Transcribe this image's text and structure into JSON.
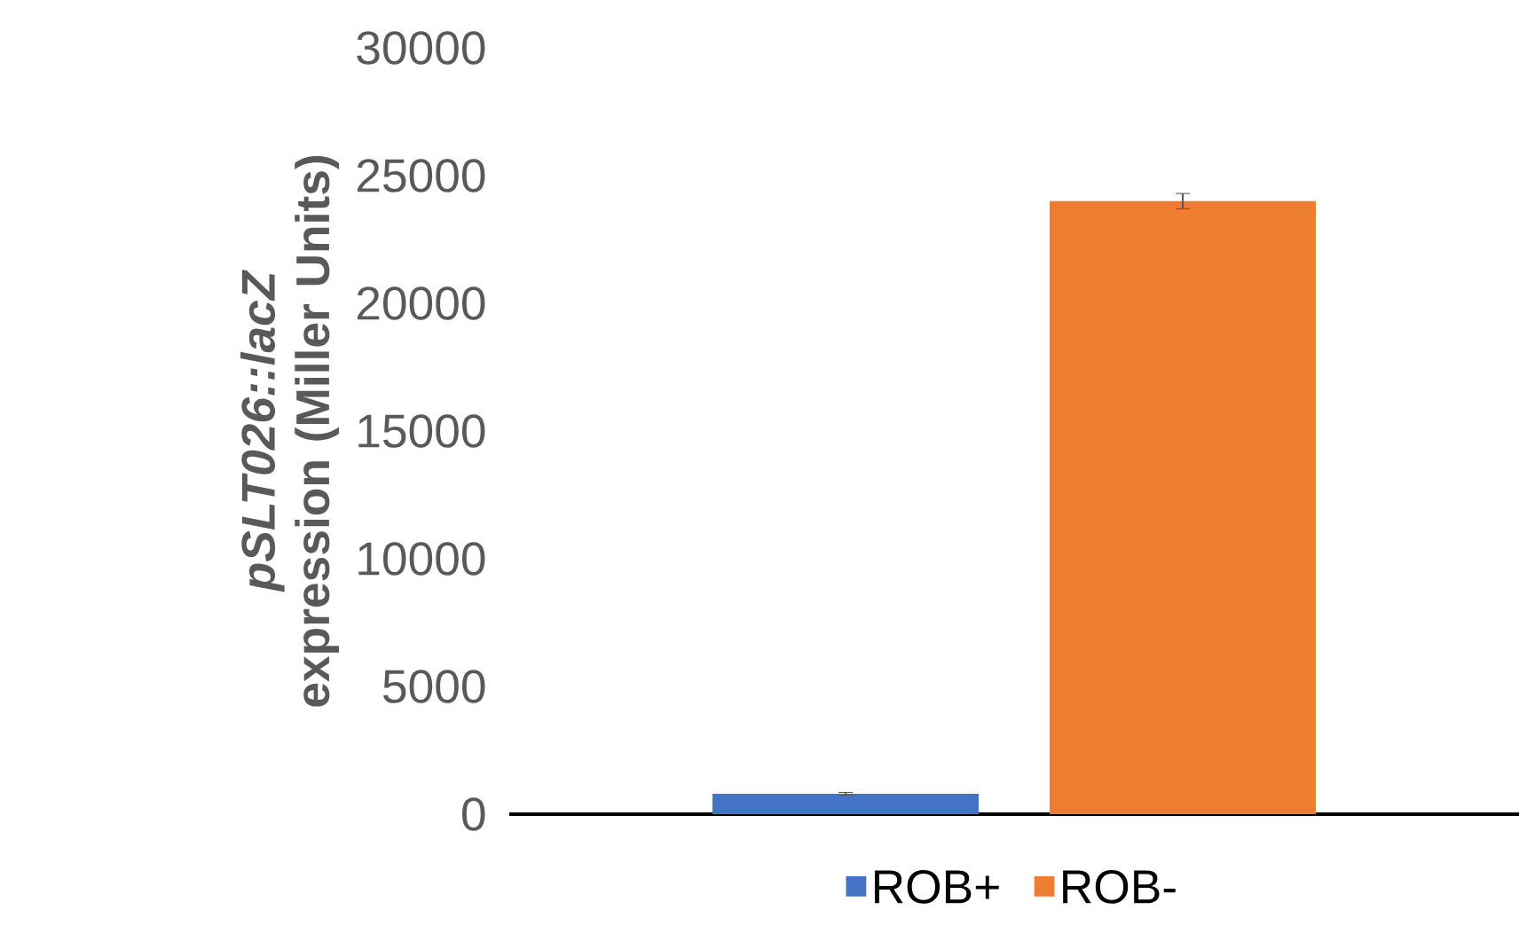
{
  "chart_data": {
    "type": "bar",
    "ylabel": "*pSLT026::lacZ* expression (Miller Units)",
    "categories": [
      null
    ],
    "series": [
      {
        "name": "ROB+",
        "color": "#4472c4",
        "values": [
          800
        ],
        "errors": [
          50
        ]
      },
      {
        "name": "ROB-",
        "color": "#ed7d31",
        "values": [
          24000
        ],
        "errors": [
          300
        ]
      }
    ],
    "ylim": [
      0,
      30000
    ],
    "yticks": [
      0,
      5000,
      10000,
      15000,
      20000,
      25000,
      30000
    ],
    "legend": "bottom"
  }
}
